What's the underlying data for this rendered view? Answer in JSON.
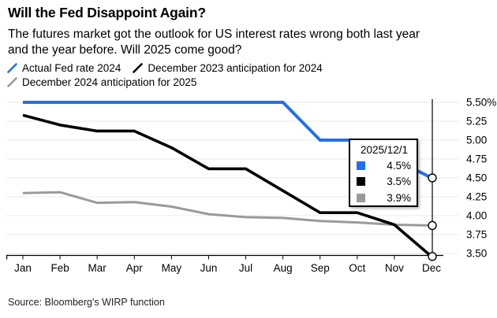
{
  "header": {
    "title": "Will the Fed Disappoint Again?",
    "subtitle_lines": [
      "The futures market got the outlook for US interest rates wrong both last year",
      "and the year before. Will 2025 come good?"
    ]
  },
  "legend": {
    "items": [
      {
        "label": "Actual Fed rate 2024",
        "color": "#2070f0"
      },
      {
        "label": "December 2023 anticipation for 2024",
        "color": "#000000"
      },
      {
        "label": "December 2024 anticipation for 2025",
        "color": "#9a9a9a"
      }
    ]
  },
  "tooltip": {
    "title": "2025/12/1",
    "rows": [
      {
        "series": "Actual Fed rate 2024",
        "color": "#2070f0",
        "value": "4.5%"
      },
      {
        "series": "December 2023 anticipation for 2024",
        "color": "#000000",
        "value": "3.5%"
      },
      {
        "series": "December 2024 anticipation for 2025",
        "color": "#9a9a9a",
        "value": "3.9%"
      }
    ]
  },
  "source": "Source: Bloomberg's WIRP function",
  "chart_data": {
    "type": "line",
    "title": "Will the Fed Disappoint Again?",
    "categories": [
      "Jan",
      "Feb",
      "Mar",
      "Apr",
      "May",
      "Jun",
      "Jul",
      "Aug",
      "Sep",
      "Oct",
      "Nov",
      "Dec"
    ],
    "series": [
      {
        "name": "Actual Fed rate 2024",
        "color": "#2070f0",
        "values": [
          5.5,
          5.5,
          5.5,
          5.5,
          5.5,
          5.5,
          5.5,
          5.5,
          5.0,
          5.0,
          4.75,
          4.5
        ]
      },
      {
        "name": "December 2023 anticipation for 2024",
        "color": "#000000",
        "values": [
          5.33,
          5.2,
          5.12,
          5.12,
          4.9,
          4.62,
          4.62,
          4.33,
          4.04,
          4.04,
          3.88,
          3.46
        ]
      },
      {
        "name": "December 2024 anticipation for 2025",
        "color": "#9a9a9a",
        "values": [
          4.3,
          4.31,
          4.17,
          4.18,
          4.12,
          4.02,
          3.98,
          3.97,
          3.93,
          3.91,
          3.88,
          3.87
        ]
      }
    ],
    "xlabel": "",
    "ylabel": "",
    "ylim": [
      3.5,
      5.5
    ],
    "y_ticks": [
      {
        "value": 5.5,
        "label": "5.50%"
      },
      {
        "value": 5.25,
        "label": "5.25"
      },
      {
        "value": 5.0,
        "label": "5.00"
      },
      {
        "value": 4.75,
        "label": "4.75"
      },
      {
        "value": 4.5,
        "label": "4.50"
      },
      {
        "value": 4.25,
        "label": "4.25"
      },
      {
        "value": 4.0,
        "label": "4.00"
      },
      {
        "value": 3.75,
        "label": "3.75"
      },
      {
        "value": 3.5,
        "label": "3.50"
      }
    ],
    "grid": "horizontal",
    "legend_position": "top",
    "crosshair_category": "Dec",
    "end_markers": true
  }
}
